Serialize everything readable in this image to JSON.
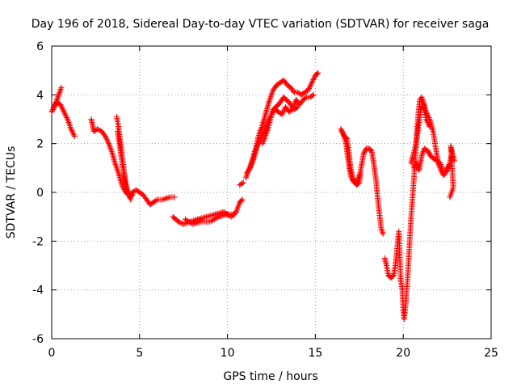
{
  "chart_data": {
    "type": "scatter",
    "title": "Day 196 of 2018, Sidereal Day-to-day VTEC variation (SDTVAR) for receiver saga",
    "xlabel": "GPS time / hours",
    "ylabel": "SDTVAR / TECUs",
    "xlim": [
      0,
      25
    ],
    "ylim": [
      -6,
      6
    ],
    "xticks": [
      0,
      5,
      10,
      15,
      20,
      25
    ],
    "yticks": [
      -6,
      -4,
      -2,
      0,
      2,
      4,
      6
    ],
    "xtick_labels": [
      "0",
      "5",
      "10",
      "15",
      "20",
      "25"
    ],
    "ytick_labels": [
      "-6",
      "-4",
      "-2",
      "0",
      "2",
      "4",
      "6"
    ],
    "grid": true,
    "marker": "plus",
    "color": "#ff0000",
    "series": [
      {
        "name": "SDTVAR",
        "tracks": [
          [
            [
              0.0,
              3.3
            ],
            [
              0.15,
              3.5
            ],
            [
              0.3,
              3.8
            ],
            [
              0.45,
              4.1
            ],
            [
              0.55,
              4.3
            ]
          ],
          [
            [
              0.1,
              3.5
            ],
            [
              0.3,
              3.7
            ],
            [
              0.5,
              3.6
            ],
            [
              0.7,
              3.3
            ],
            [
              0.9,
              3.0
            ],
            [
              1.1,
              2.6
            ],
            [
              1.3,
              2.3
            ]
          ],
          [
            [
              2.25,
              3.0
            ],
            [
              2.4,
              2.5
            ],
            [
              2.6,
              2.6
            ],
            [
              2.85,
              2.5
            ],
            [
              3.05,
              2.3
            ],
            [
              3.25,
              2.0
            ],
            [
              3.45,
              1.6
            ],
            [
              3.6,
              1.2
            ],
            [
              3.8,
              0.8
            ],
            [
              4.0,
              0.3
            ],
            [
              4.2,
              0.0
            ],
            [
              4.4,
              -0.1
            ],
            [
              4.6,
              0.0
            ],
            [
              4.8,
              0.1
            ],
            [
              5.0,
              0.0
            ],
            [
              5.2,
              -0.1
            ],
            [
              5.4,
              -0.3
            ],
            [
              5.6,
              -0.5
            ],
            [
              5.8,
              -0.4
            ],
            [
              6.0,
              -0.3
            ],
            [
              6.3,
              -0.3
            ],
            [
              6.7,
              -0.2
            ],
            [
              7.0,
              -0.2
            ]
          ],
          [
            [
              3.7,
              3.1
            ],
            [
              3.8,
              2.7
            ],
            [
              3.9,
              2.1
            ],
            [
              4.0,
              1.5
            ],
            [
              4.1,
              1.0
            ],
            [
              4.2,
              0.4
            ],
            [
              4.35,
              0.0
            ],
            [
              4.5,
              -0.3
            ]
          ],
          [
            [
              3.75,
              2.5
            ],
            [
              3.85,
              2.0
            ],
            [
              3.95,
              1.5
            ],
            [
              4.05,
              1.0
            ],
            [
              4.15,
              0.5
            ],
            [
              4.25,
              0.1
            ],
            [
              4.45,
              -0.2
            ],
            [
              4.6,
              -0.1
            ]
          ],
          [
            [
              6.9,
              -1.0
            ],
            [
              7.2,
              -1.2
            ],
            [
              7.5,
              -1.3
            ],
            [
              7.9,
              -1.2
            ],
            [
              8.3,
              -1.1
            ],
            [
              8.8,
              -1.0
            ],
            [
              9.3,
              -0.9
            ],
            [
              9.8,
              -0.8
            ],
            [
              10.2,
              -1.0
            ],
            [
              10.5,
              -0.8
            ],
            [
              10.7,
              -0.4
            ],
            [
              10.85,
              -0.3
            ]
          ],
          [
            [
              7.6,
              -1.1
            ],
            [
              8.0,
              -1.3
            ],
            [
              8.5,
              -1.2
            ],
            [
              9.0,
              -1.2
            ],
            [
              9.5,
              -1.0
            ],
            [
              10.0,
              -0.9
            ],
            [
              10.4,
              -0.9
            ]
          ],
          [
            [
              10.7,
              0.3
            ],
            [
              10.9,
              0.4
            ]
          ],
          [
            [
              11.05,
              0.6
            ],
            [
              11.2,
              0.9
            ],
            [
              11.4,
              1.3
            ],
            [
              11.6,
              1.8
            ],
            [
              11.8,
              2.4
            ],
            [
              12.0,
              2.8
            ],
            [
              12.2,
              3.3
            ],
            [
              12.4,
              3.8
            ],
            [
              12.6,
              4.2
            ],
            [
              12.8,
              4.4
            ],
            [
              13.0,
              4.5
            ],
            [
              13.2,
              4.6
            ],
            [
              13.4,
              4.4
            ],
            [
              13.6,
              4.3
            ],
            [
              13.8,
              4.1
            ],
            [
              14.0,
              4.1
            ],
            [
              14.2,
              4.0
            ],
            [
              14.4,
              4.1
            ],
            [
              14.6,
              4.2
            ],
            [
              14.8,
              4.5
            ],
            [
              15.0,
              4.8
            ],
            [
              15.15,
              4.9
            ]
          ],
          [
            [
              11.1,
              0.8
            ],
            [
              11.3,
              1.0
            ],
            [
              11.5,
              1.4
            ],
            [
              11.7,
              1.9
            ],
            [
              11.9,
              2.2
            ],
            [
              12.1,
              2.5
            ],
            [
              12.3,
              2.9
            ],
            [
              12.5,
              3.2
            ],
            [
              12.7,
              3.4
            ],
            [
              12.9,
              3.3
            ],
            [
              13.1,
              3.2
            ],
            [
              13.3,
              3.5
            ],
            [
              13.5,
              3.3
            ],
            [
              13.7,
              3.4
            ],
            [
              13.9,
              3.8
            ],
            [
              14.1,
              3.6
            ],
            [
              14.3,
              3.8
            ],
            [
              14.5,
              3.9
            ],
            [
              14.7,
              3.9
            ],
            [
              14.9,
              4.0
            ]
          ],
          [
            [
              12.0,
              2.0
            ],
            [
              12.3,
              2.6
            ],
            [
              12.6,
              3.4
            ],
            [
              12.9,
              3.6
            ],
            [
              13.2,
              3.9
            ],
            [
              13.5,
              3.7
            ],
            [
              13.8,
              3.4
            ],
            [
              14.0,
              3.5
            ]
          ],
          [
            [
              16.5,
              2.5
            ],
            [
              16.65,
              2.3
            ],
            [
              16.8,
              2.2
            ],
            [
              16.9,
              1.7
            ],
            [
              17.0,
              1.0
            ],
            [
              17.15,
              0.5
            ],
            [
              17.35,
              0.3
            ],
            [
              17.5,
              0.4
            ],
            [
              17.6,
              1.0
            ],
            [
              17.75,
              1.6
            ],
            [
              17.9,
              1.8
            ],
            [
              18.05,
              1.8
            ],
            [
              18.2,
              1.7
            ],
            [
              18.3,
              1.3
            ],
            [
              18.45,
              0.5
            ],
            [
              18.6,
              -0.6
            ],
            [
              18.75,
              -1.5
            ],
            [
              18.85,
              -1.7
            ]
          ],
          [
            [
              18.95,
              -2.7
            ],
            [
              19.05,
              -3.0
            ],
            [
              19.15,
              -3.4
            ],
            [
              19.3,
              -3.5
            ],
            [
              19.45,
              -3.4
            ],
            [
              19.55,
              -3.0
            ],
            [
              19.65,
              -2.3
            ],
            [
              19.75,
              -1.6
            ],
            [
              19.85,
              -3.6
            ],
            [
              19.95,
              -4.0
            ],
            [
              20.0,
              -4.8
            ],
            [
              20.05,
              -5.2
            ],
            [
              20.15,
              -4.5
            ],
            [
              20.25,
              -3.5
            ],
            [
              20.35,
              -2.2
            ],
            [
              20.45,
              -1.0
            ],
            [
              20.55,
              0.0
            ],
            [
              20.65,
              1.0
            ],
            [
              20.75,
              2.2
            ],
            [
              20.85,
              3.2
            ],
            [
              20.95,
              3.8
            ],
            [
              21.05,
              3.9
            ],
            [
              21.15,
              3.7
            ],
            [
              21.3,
              3.3
            ],
            [
              21.5,
              3.0
            ],
            [
              21.7,
              2.5
            ],
            [
              21.85,
              1.8
            ],
            [
              22.0,
              1.2
            ],
            [
              22.15,
              0.9
            ],
            [
              22.3,
              0.7
            ],
            [
              22.5,
              0.9
            ],
            [
              22.65,
              1.2
            ],
            [
              22.75,
              1.5
            ]
          ],
          [
            [
              20.6,
              1.0
            ],
            [
              20.75,
              1.2
            ],
            [
              20.9,
              0.9
            ],
            [
              21.05,
              1.5
            ],
            [
              21.2,
              1.8
            ],
            [
              21.4,
              1.7
            ],
            [
              21.55,
              1.5
            ],
            [
              21.7,
              1.4
            ],
            [
              21.9,
              1.3
            ],
            [
              22.1,
              1.2
            ],
            [
              22.25,
              0.9
            ],
            [
              22.45,
              0.9
            ],
            [
              22.6,
              1.1
            ]
          ],
          [
            [
              22.65,
              -0.2
            ],
            [
              22.75,
              0.0
            ],
            [
              22.85,
              0.2
            ],
            [
              22.7,
              1.9
            ],
            [
              22.8,
              1.6
            ],
            [
              22.9,
              1.3
            ]
          ],
          [
            [
              20.45,
              1.2
            ],
            [
              20.55,
              1.5
            ],
            [
              20.7,
              1.9
            ],
            [
              20.85,
              2.6
            ],
            [
              21.0,
              3.4
            ],
            [
              21.15,
              3.6
            ],
            [
              21.3,
              3.0
            ],
            [
              21.5,
              2.7
            ]
          ],
          [
            [
              16.45,
              2.6
            ],
            [
              16.6,
              2.4
            ],
            [
              16.75,
              2.0
            ],
            [
              16.85,
              1.4
            ],
            [
              17.0,
              0.7
            ],
            [
              17.2,
              0.4
            ],
            [
              17.4,
              0.5
            ],
            [
              17.55,
              0.8
            ]
          ]
        ]
      }
    ]
  }
}
